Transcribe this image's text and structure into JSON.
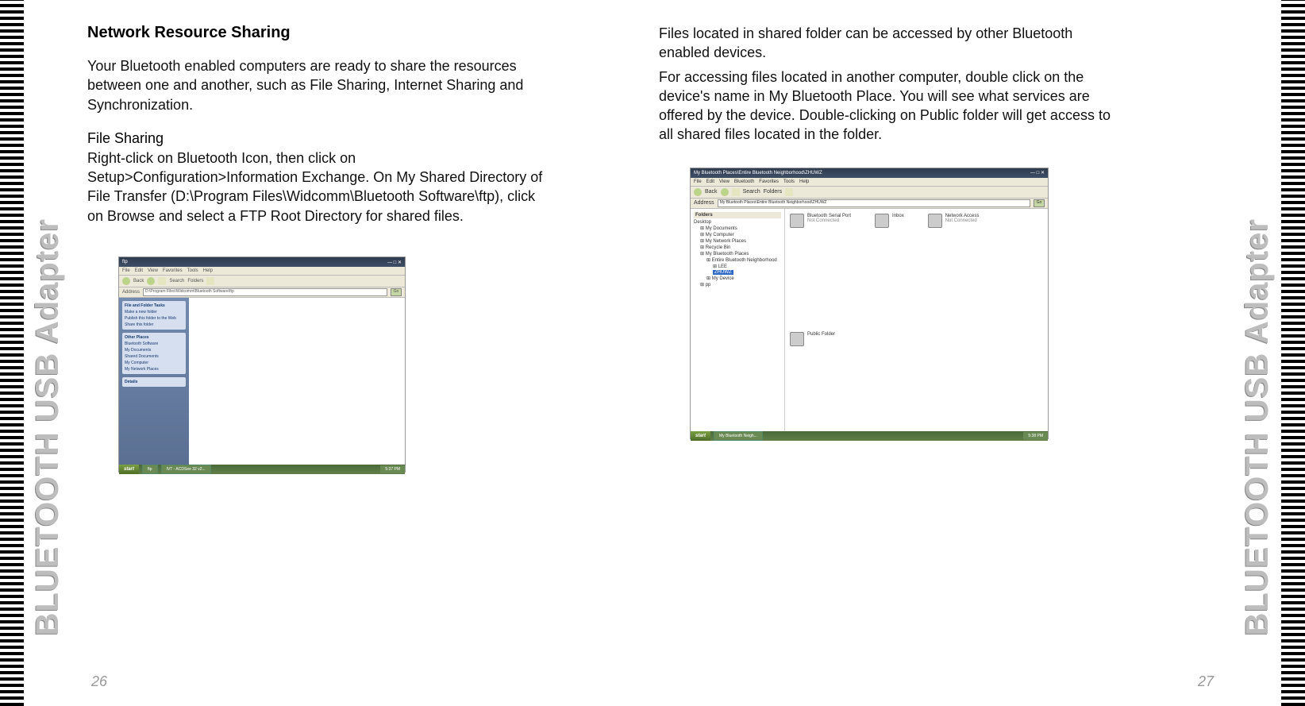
{
  "spine_text": "BLUETOOTH USB Adapter",
  "left_page": {
    "heading": "Network Resource Sharing",
    "intro": "Your Bluetooth enabled computers are ready to share the resources between one and another, such as File Sharing, Internet Sharing and Synchronization.",
    "subhead": "File Sharing",
    "body": "Right-click on Bluetooth Icon, then click on Setup>Configuration>Information Exchange. On My Shared Directory of File Transfer (D:\\Program Files\\Widcomm\\Bluetooth Software\\ftp), click on Browse and select a FTP Root Directory for shared files.",
    "page_number": "26",
    "screenshot": {
      "title": "ftp",
      "menus": [
        "File",
        "Edit",
        "View",
        "Favorites",
        "Tools",
        "Help"
      ],
      "toolbar": {
        "back": "Back",
        "search": "Search",
        "folders": "Folders"
      },
      "address_label": "Address",
      "address_value": "D:\\Program Files\\Widcomm\\Bluetooth Software\\ftp",
      "go": "Go",
      "side_panels": {
        "panel1_title": "File and Folder Tasks",
        "panel1_items": [
          "Make a new folder",
          "Publish this folder to the Web",
          "Share this folder"
        ],
        "panel2_title": "Other Places",
        "panel2_items": [
          "Bluetooth Software",
          "My Documents",
          "Shared Documents",
          "My Computer",
          "My Network Places"
        ],
        "panel3_title": "Details"
      },
      "taskbar": {
        "start": "start",
        "items": [
          "ftp",
          "IVT - ACDSee 32 v2..."
        ],
        "tray": "5:37 PM"
      }
    }
  },
  "right_page": {
    "para1": "Files located in shared folder can be accessed by other Bluetooth enabled devices.",
    "para2": "For accessing files located in another computer, double click on the device's name in My Bluetooth Place. You will see what services are offered by the device. Double-clicking on Public folder will get access to all shared files located in the folder.",
    "page_number": "27",
    "screenshot": {
      "title": "My Bluetooth Places\\Entire Bluetooth Neighborhood\\ZHUWZ",
      "menus": [
        "File",
        "Edit",
        "View",
        "Bluetooth",
        "Favorites",
        "Tools",
        "Help"
      ],
      "toolbar": {
        "back": "Back",
        "search": "Search",
        "folders": "Folders"
      },
      "address_label": "Address",
      "address_value": "My Bluetooth Places\\Entire Bluetooth Neighborhood\\ZHUWZ",
      "go": "Go",
      "tree_title": "Folders",
      "tree": [
        {
          "label": "Desktop",
          "indent": 0
        },
        {
          "label": "My Documents",
          "indent": 1
        },
        {
          "label": "My Computer",
          "indent": 1
        },
        {
          "label": "My Network Places",
          "indent": 1
        },
        {
          "label": "Recycle Bin",
          "indent": 1
        },
        {
          "label": "My Bluetooth Places",
          "indent": 1
        },
        {
          "label": "Entire Bluetooth Neighborhood",
          "indent": 2
        },
        {
          "label": "LEE",
          "indent": 3
        },
        {
          "label": "ZHUWZ",
          "indent": 3,
          "selected": true
        },
        {
          "label": "My Device",
          "indent": 2
        },
        {
          "label": "pp",
          "indent": 1
        }
      ],
      "services": [
        {
          "name": "Bluetooth Serial Port",
          "status": "Not Connected"
        },
        {
          "name": "Inbox",
          "status": ""
        },
        {
          "name": "Network Access",
          "status": "Not Connected"
        },
        {
          "name": "Public Folder",
          "status": ""
        }
      ],
      "taskbar": {
        "start": "start",
        "items": [
          "My Bluetooth Neigh..."
        ],
        "tray": "5:38 PM"
      }
    }
  }
}
